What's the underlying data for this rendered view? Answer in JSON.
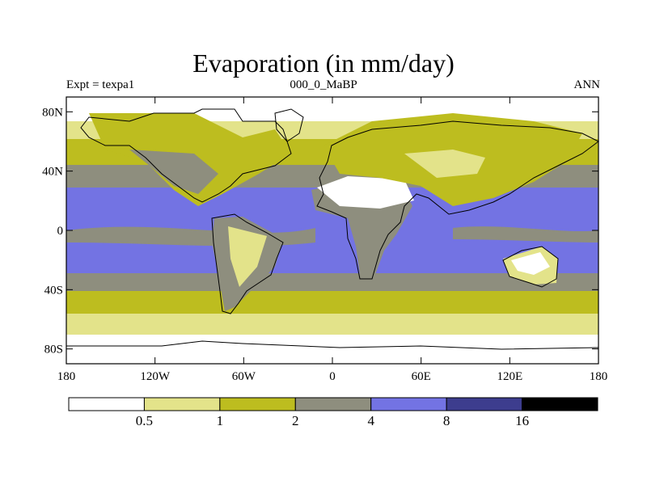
{
  "title": "Evaporation (in mm/day)",
  "left_label": "Expt = texpa1",
  "center_label": "000_0_MaBP",
  "right_label": "ANN",
  "lat_ticks": [
    {
      "value": 80,
      "label": "80N"
    },
    {
      "value": 40,
      "label": "40N"
    },
    {
      "value": 0,
      "label": "0"
    },
    {
      "value": -40,
      "label": "40S"
    },
    {
      "value": -80,
      "label": "80S"
    }
  ],
  "lon_ticks": [
    {
      "value": -180,
      "label": "180"
    },
    {
      "value": -120,
      "label": "120W"
    },
    {
      "value": -60,
      "label": "60W"
    },
    {
      "value": 0,
      "label": "0"
    },
    {
      "value": 60,
      "label": "60E"
    },
    {
      "value": 120,
      "label": "120E"
    },
    {
      "value": 180,
      "label": "180"
    }
  ],
  "colorbar": {
    "levels": [
      "0.5",
      "1",
      "2",
      "4",
      "8",
      "16"
    ],
    "colors": [
      "#ffffff",
      "#e3e38a",
      "#bdbd1f",
      "#8e8e7e",
      "#7373e3",
      "#3d3d8e",
      "#000000"
    ]
  },
  "map_colors": {
    "desert": "#ffffff",
    "very_low": "#e3e38a",
    "low": "#bdbd1f",
    "mid": "#8e8e7e",
    "high": "#7373e3",
    "coast": "#000000"
  }
}
